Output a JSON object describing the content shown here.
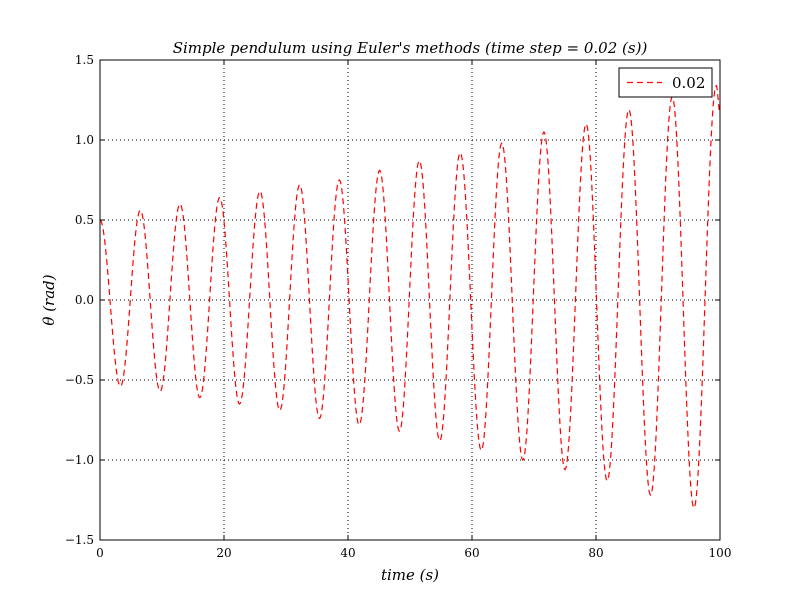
{
  "chart_data": {
    "type": "line",
    "title": "Simple pendulum using Euler's methods (time step = 0.02 (s))",
    "xlabel": "time (s)",
    "ylabel": "θ (rad)",
    "xlim": [
      0,
      100
    ],
    "ylim": [
      -1.5,
      1.5
    ],
    "xticks": [
      0,
      20,
      40,
      60,
      80,
      100
    ],
    "xtick_labels": [
      "0",
      "20",
      "40",
      "60",
      "80",
      "100"
    ],
    "yticks": [
      -1.5,
      -1.0,
      -0.5,
      0.0,
      0.5,
      1.0,
      1.5
    ],
    "ytick_labels": [
      "−1.5",
      "−1.0",
      "−0.5",
      "0.0",
      "0.5",
      "1.0",
      "1.5"
    ],
    "grid": true,
    "legend_position": "top-right",
    "series": [
      {
        "name": "0.02",
        "color": "#ff0000",
        "line_style": "dashed",
        "sampling": "cosine oscillation through the peaks and troughs below",
        "extrema": [
          {
            "x": 0.0,
            "y": 0.5
          },
          {
            "x": 3.3,
            "y": -0.54
          },
          {
            "x": 6.5,
            "y": 0.56
          },
          {
            "x": 9.7,
            "y": -0.57
          },
          {
            "x": 12.9,
            "y": 0.6
          },
          {
            "x": 16.1,
            "y": -0.61
          },
          {
            "x": 19.3,
            "y": 0.64
          },
          {
            "x": 22.5,
            "y": -0.65
          },
          {
            "x": 25.8,
            "y": 0.68
          },
          {
            "x": 29.0,
            "y": -0.69
          },
          {
            "x": 32.2,
            "y": 0.72
          },
          {
            "x": 35.4,
            "y": -0.74
          },
          {
            "x": 38.6,
            "y": 0.75
          },
          {
            "x": 41.8,
            "y": -0.78
          },
          {
            "x": 45.1,
            "y": 0.81
          },
          {
            "x": 48.3,
            "y": -0.82
          },
          {
            "x": 51.5,
            "y": 0.87
          },
          {
            "x": 54.8,
            "y": -0.88
          },
          {
            "x": 58.1,
            "y": 0.92
          },
          {
            "x": 61.5,
            "y": -0.94
          },
          {
            "x": 64.8,
            "y": 0.98
          },
          {
            "x": 68.2,
            "y": -1.0
          },
          {
            "x": 71.6,
            "y": 1.05
          },
          {
            "x": 75.0,
            "y": -1.06
          },
          {
            "x": 78.4,
            "y": 1.1
          },
          {
            "x": 81.8,
            "y": -1.13
          },
          {
            "x": 85.3,
            "y": 1.19
          },
          {
            "x": 88.8,
            "y": -1.22
          },
          {
            "x": 92.3,
            "y": 1.27
          },
          {
            "x": 95.8,
            "y": -1.3
          },
          {
            "x": 99.4,
            "y": 1.34
          },
          {
            "x": 100.0,
            "y": 1.17
          }
        ]
      }
    ]
  }
}
